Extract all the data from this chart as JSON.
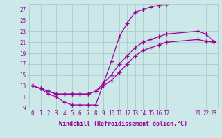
{
  "xlabel": "Windchill (Refroidissement éolien,°C)",
  "background_color": "#cce8e8",
  "grid_color": "#aacccc",
  "line_color": "#990099",
  "ylim": [
    9,
    28
  ],
  "xlim": [
    -0.5,
    23.5
  ],
  "yticks": [
    9,
    11,
    13,
    15,
    17,
    19,
    21,
    23,
    25,
    27
  ],
  "xticks": [
    0,
    1,
    2,
    3,
    4,
    5,
    6,
    7,
    8,
    9,
    10,
    11,
    12,
    13,
    14,
    15,
    16,
    17,
    21,
    22,
    23
  ],
  "curve_zigzag_x": [
    0,
    1,
    2,
    3,
    4,
    5,
    6,
    7,
    8,
    9,
    10,
    11,
    12,
    13,
    14,
    15,
    16,
    17
  ],
  "curve_zigzag_y": [
    13,
    12.5,
    11.5,
    11,
    10,
    9.5,
    9.5,
    9.5,
    9.5,
    13.5,
    17.5,
    22,
    24.5,
    26.5,
    27,
    27.5,
    27.8,
    28
  ],
  "curve_upper_x": [
    0,
    1,
    2,
    3,
    4,
    5,
    6,
    7,
    8,
    9,
    10,
    11,
    12,
    13,
    14,
    15,
    16,
    17,
    21,
    22,
    23
  ],
  "curve_upper_y": [
    13,
    12.5,
    12,
    11.5,
    11.5,
    11.5,
    11.5,
    11.5,
    12,
    13.5,
    15,
    17,
    18.5,
    20,
    21,
    21.5,
    22,
    22.5,
    23,
    22.5,
    21.2
  ],
  "curve_lower_x": [
    0,
    1,
    2,
    3,
    4,
    5,
    6,
    7,
    8,
    9,
    10,
    11,
    12,
    13,
    14,
    15,
    16,
    17,
    21,
    22,
    23
  ],
  "curve_lower_y": [
    13,
    12.5,
    12,
    11.5,
    11.5,
    11.5,
    11.5,
    11.5,
    12,
    13,
    14,
    15.5,
    17,
    18.5,
    19.5,
    20,
    20.5,
    21,
    21.5,
    21.2,
    21
  ]
}
